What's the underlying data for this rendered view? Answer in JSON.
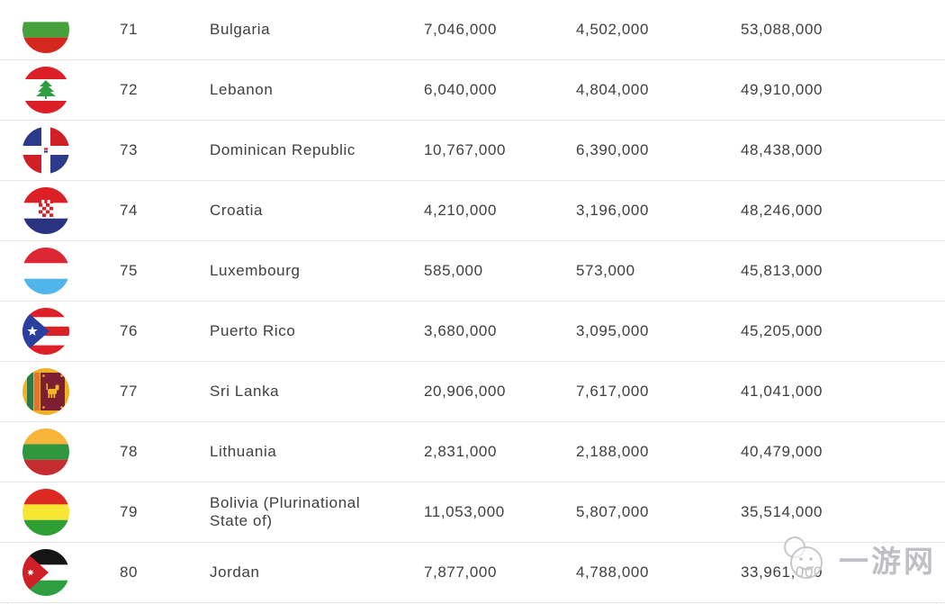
{
  "table": {
    "rows": [
      {
        "rank": "71",
        "country": "Bulgaria",
        "flag_icon": "bulgaria-flag-icon",
        "flag": "bulgaria",
        "col1": "7,046,000",
        "col2": "4,502,000",
        "col3": "53,088,000"
      },
      {
        "rank": "72",
        "country": "Lebanon",
        "flag_icon": "lebanon-flag-icon",
        "flag": "lebanon",
        "col1": "6,040,000",
        "col2": "4,804,000",
        "col3": "49,910,000"
      },
      {
        "rank": "73",
        "country": "Dominican Republic",
        "flag_icon": "dominican-republic-flag-icon",
        "flag": "dominican",
        "col1": "10,767,000",
        "col2": "6,390,000",
        "col3": "48,438,000"
      },
      {
        "rank": "74",
        "country": "Croatia",
        "flag_icon": "croatia-flag-icon",
        "flag": "croatia",
        "col1": "4,210,000",
        "col2": "3,196,000",
        "col3": "48,246,000"
      },
      {
        "rank": "75",
        "country": "Luxembourg",
        "flag_icon": "luxembourg-flag-icon",
        "flag": "luxembourg",
        "col1": "585,000",
        "col2": "573,000",
        "col3": "45,813,000"
      },
      {
        "rank": "76",
        "country": "Puerto Rico",
        "flag_icon": "puerto-rico-flag-icon",
        "flag": "puertorico",
        "col1": "3,680,000",
        "col2": "3,095,000",
        "col3": "45,205,000"
      },
      {
        "rank": "77",
        "country": "Sri Lanka",
        "flag_icon": "sri-lanka-flag-icon",
        "flag": "srilanka",
        "col1": "20,906,000",
        "col2": "7,617,000",
        "col3": "41,041,000"
      },
      {
        "rank": "78",
        "country": "Lithuania",
        "flag_icon": "lithuania-flag-icon",
        "flag": "lithuania",
        "col1": "2,831,000",
        "col2": "2,188,000",
        "col3": "40,479,000"
      },
      {
        "rank": "79",
        "country": "Bolivia (Plurinational State of)",
        "flag_icon": "bolivia-flag-icon",
        "flag": "bolivia",
        "col1": "11,053,000",
        "col2": "5,807,000",
        "col3": "35,514,000"
      },
      {
        "rank": "80",
        "country": "Jordan",
        "flag_icon": "jordan-flag-icon",
        "flag": "jordan",
        "col1": "7,877,000",
        "col2": "4,788,000",
        "col3": "33,961,000"
      }
    ]
  },
  "watermark": {
    "text": "一游网",
    "icon": "mascot-face-icon",
    "color": "#bfbfc6"
  },
  "colors": {
    "divider": "#e7e7ea",
    "text": "#3f3f41",
    "row_background": "#ffffff"
  }
}
